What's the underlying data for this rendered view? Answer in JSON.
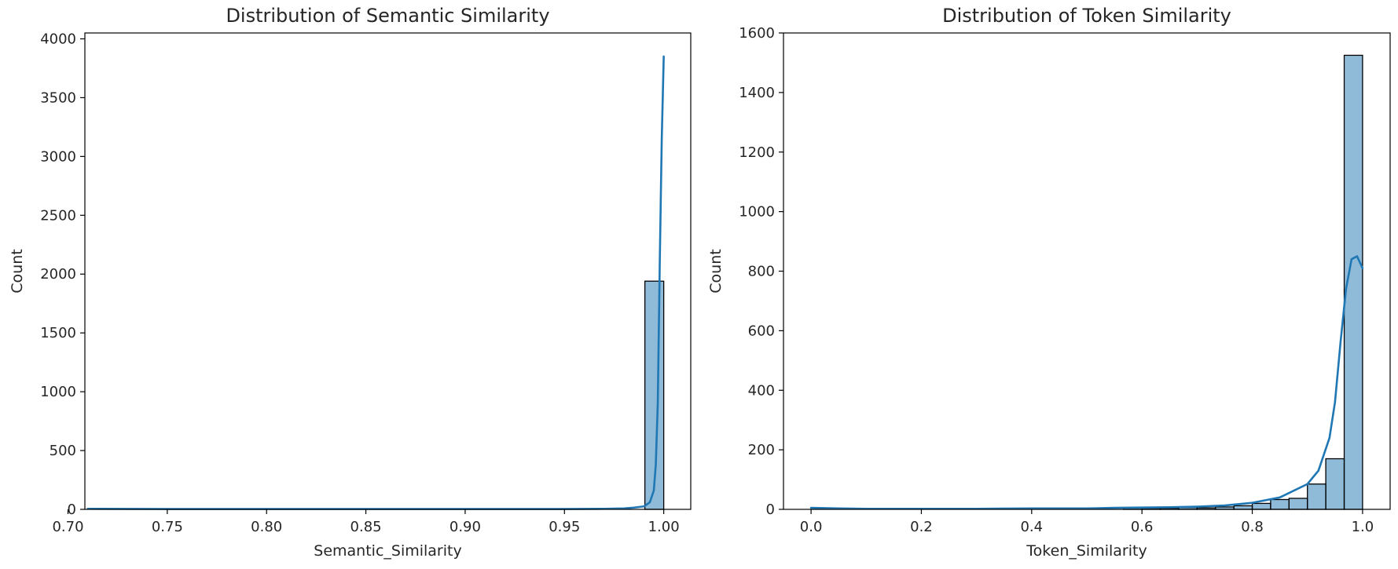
{
  "chart_data": [
    {
      "type": "bar",
      "title": "Distribution of Semantic Similarity",
      "xlabel": "Semantic_Similarity",
      "ylabel": "Count",
      "xlim": [
        0.7085,
        1.0136
      ],
      "ylim": [
        0,
        4050
      ],
      "xticks": [
        0.7,
        0.75,
        0.8,
        0.85,
        0.9,
        0.95,
        1.0
      ],
      "xtick_labels": [
        "0.70",
        "0.75",
        "0.80",
        "0.85",
        "0.90",
        "0.95",
        "1.00"
      ],
      "yticks": [
        0,
        500,
        1000,
        1500,
        2000,
        2500,
        3000,
        3500,
        4000
      ],
      "ytick_labels": [
        "0",
        "500",
        "1000",
        "1500",
        "2000",
        "2500",
        "3000",
        "3500",
        "4000"
      ],
      "bar_color": "#1f77b4",
      "bins": [
        {
          "x0": 0.9905,
          "x1": 1.0,
          "count": 1940
        }
      ],
      "kde": {
        "x": [
          0.71,
          0.75,
          0.8,
          0.85,
          0.9,
          0.95,
          0.97,
          0.98,
          0.985,
          0.99,
          0.993,
          0.995,
          0.996,
          0.997,
          0.998,
          0.999,
          1.0
        ],
        "y": [
          5,
          3,
          3,
          3,
          3,
          3,
          5,
          8,
          15,
          25,
          60,
          160,
          380,
          900,
          2100,
          3150,
          3850
        ]
      }
    },
    {
      "type": "bar",
      "title": "Distribution of Token Similarity",
      "xlabel": "Token_Similarity",
      "ylabel": "Count",
      "xlim": [
        -0.05,
        1.05
      ],
      "ylim": [
        0,
        1600
      ],
      "xticks": [
        0.0,
        0.2,
        0.4,
        0.6,
        0.8,
        1.0
      ],
      "xtick_labels": [
        "0.0",
        "0.2",
        "0.4",
        "0.6",
        "0.8",
        "1.0"
      ],
      "yticks": [
        0,
        200,
        400,
        600,
        800,
        1000,
        1200,
        1400,
        1600
      ],
      "ytick_labels": [
        "0",
        "200",
        "400",
        "600",
        "800",
        "1000",
        "1200",
        "1400",
        "1600"
      ],
      "bar_color": "#1f77b4",
      "bins": [
        {
          "x0": 0.5667,
          "x1": 0.6,
          "count": 5
        },
        {
          "x0": 0.6,
          "x1": 0.6333,
          "count": 4
        },
        {
          "x0": 0.6333,
          "x1": 0.6667,
          "count": 4
        },
        {
          "x0": 0.6667,
          "x1": 0.7,
          "count": 6
        },
        {
          "x0": 0.7,
          "x1": 0.7333,
          "count": 5
        },
        {
          "x0": 0.7333,
          "x1": 0.7667,
          "count": 8
        },
        {
          "x0": 0.7667,
          "x1": 0.8,
          "count": 12
        },
        {
          "x0": 0.8,
          "x1": 0.8333,
          "count": 20
        },
        {
          "x0": 0.8333,
          "x1": 0.8667,
          "count": 33
        },
        {
          "x0": 0.8667,
          "x1": 0.9,
          "count": 37
        },
        {
          "x0": 0.9,
          "x1": 0.9333,
          "count": 85
        },
        {
          "x0": 0.9333,
          "x1": 0.9667,
          "count": 170
        },
        {
          "x0": 0.9667,
          "x1": 1.0,
          "count": 1525
        }
      ],
      "kde": {
        "x": [
          0.0,
          0.05,
          0.1,
          0.2,
          0.3,
          0.4,
          0.5,
          0.55,
          0.6,
          0.65,
          0.7,
          0.75,
          0.8,
          0.85,
          0.9,
          0.92,
          0.94,
          0.95,
          0.96,
          0.97,
          0.98,
          0.99,
          1.0
        ],
        "y": [
          5,
          3,
          2,
          2,
          2,
          3,
          3,
          5,
          6,
          7,
          9,
          13,
          22,
          40,
          85,
          130,
          240,
          360,
          560,
          740,
          840,
          850,
          810
        ]
      }
    }
  ]
}
